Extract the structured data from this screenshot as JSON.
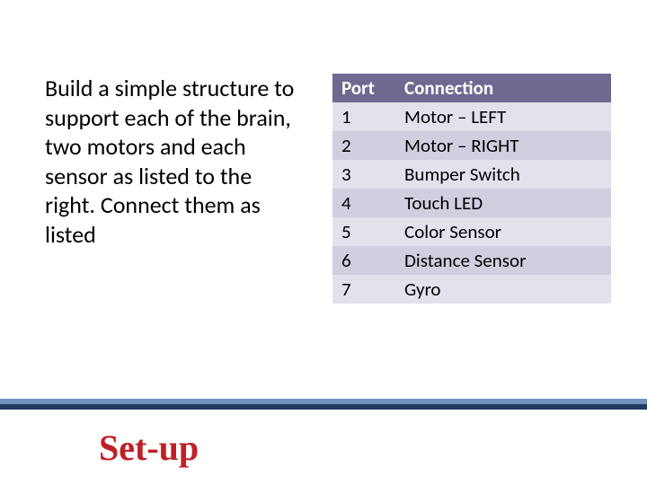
{
  "instructions_text": "Build a simple structure to support each of the brain, two motors and each sensor as listed to the right.  Connect them as listed",
  "table": {
    "columns": [
      "Port",
      "Connection"
    ],
    "header_bg": "#6e698f",
    "header_color": "#ffffff",
    "row_odd_bg": "#e2e1ec",
    "row_even_bg": "#d1cfdf",
    "rows": [
      [
        "1",
        "Motor – LEFT"
      ],
      [
        "2",
        "Motor – RIGHT"
      ],
      [
        "3",
        "Bumper Switch"
      ],
      [
        "4",
        "Touch LED"
      ],
      [
        "5",
        "Color Sensor"
      ],
      [
        "6",
        "Distance Sensor"
      ],
      [
        "7",
        "Gyro"
      ]
    ]
  },
  "footer": {
    "stripe_light": "#7094c0",
    "stripe_dark": "#203a5c",
    "title": "Set-up",
    "title_color": "#bf2026"
  }
}
